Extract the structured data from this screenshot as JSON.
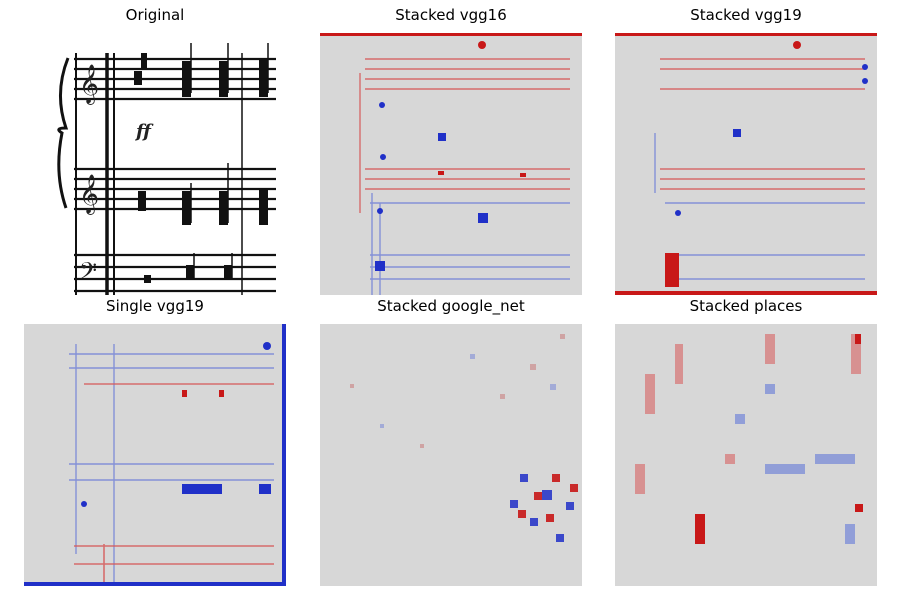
{
  "figure": {
    "panels": [
      {
        "title": "Original",
        "kind": "sheet-music"
      },
      {
        "title": "Stacked vgg16",
        "kind": "heatmap"
      },
      {
        "title": "Stacked vgg19",
        "kind": "heatmap"
      },
      {
        "title": "Single vgg19",
        "kind": "heatmap"
      },
      {
        "title": "Stacked google_net",
        "kind": "heatmap"
      },
      {
        "title": "Stacked places",
        "kind": "heatmap"
      }
    ],
    "colors": {
      "neutral": "#d7d7d7",
      "positive": "#d62020",
      "negative": "#2030c8",
      "ink": "#111111"
    },
    "colormap": "blue-gray-red diverging"
  }
}
